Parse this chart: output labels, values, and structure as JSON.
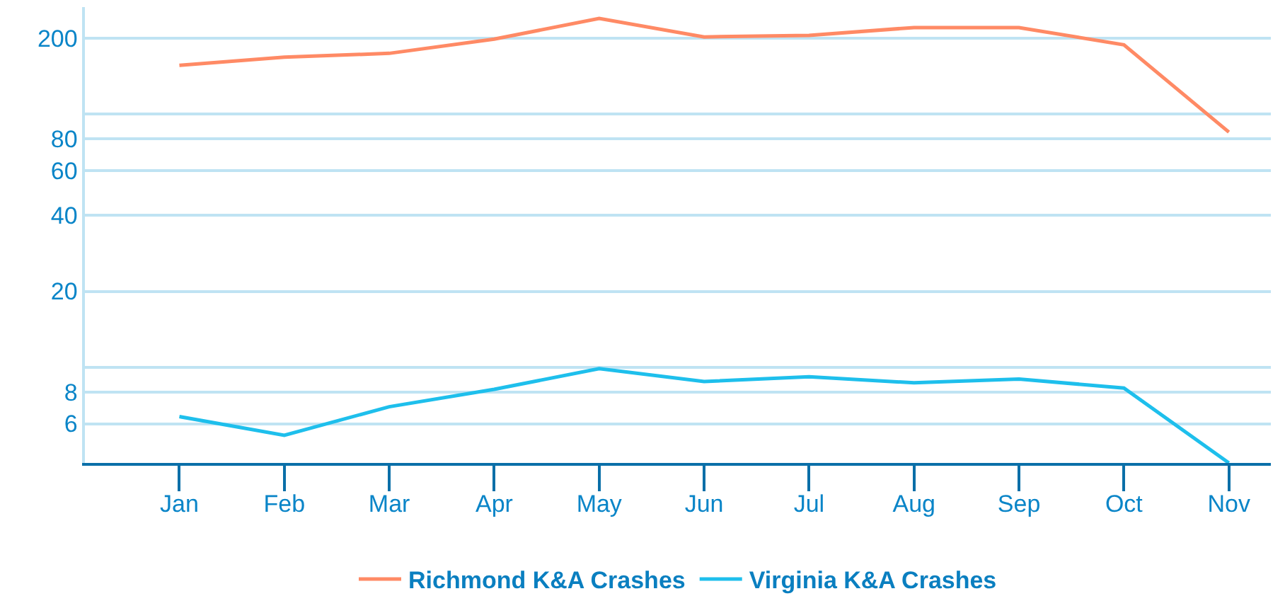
{
  "chart_data": {
    "type": "line",
    "categories": [
      "Jan",
      "Feb",
      "Mar",
      "Apr",
      "May",
      "Jun",
      "Jul",
      "Aug",
      "Sep",
      "Oct",
      "Nov"
    ],
    "series": [
      {
        "name": "Richmond K&A Crashes",
        "color": "#ff8a65",
        "values": [
          156,
          168,
          174,
          198,
          239,
          202,
          205,
          220,
          220,
          188,
          85
        ]
      },
      {
        "name": "Virginia K&A Crashes",
        "color": "#1ebfec",
        "values": [
          6.4,
          5.4,
          7.0,
          8.2,
          9.9,
          8.8,
          9.2,
          8.7,
          9.0,
          8.3,
          4.2
        ]
      }
    ],
    "log": "y",
    "ylim": [
      4.2,
      265
    ],
    "yticks": [
      6,
      8,
      {
        "value": 10,
        "label": null
      },
      20,
      40,
      60,
      80,
      {
        "value": 100,
        "label": null
      },
      200
    ],
    "grid": "y",
    "legend": "bottom",
    "marker": "none",
    "line_style": "solid"
  }
}
